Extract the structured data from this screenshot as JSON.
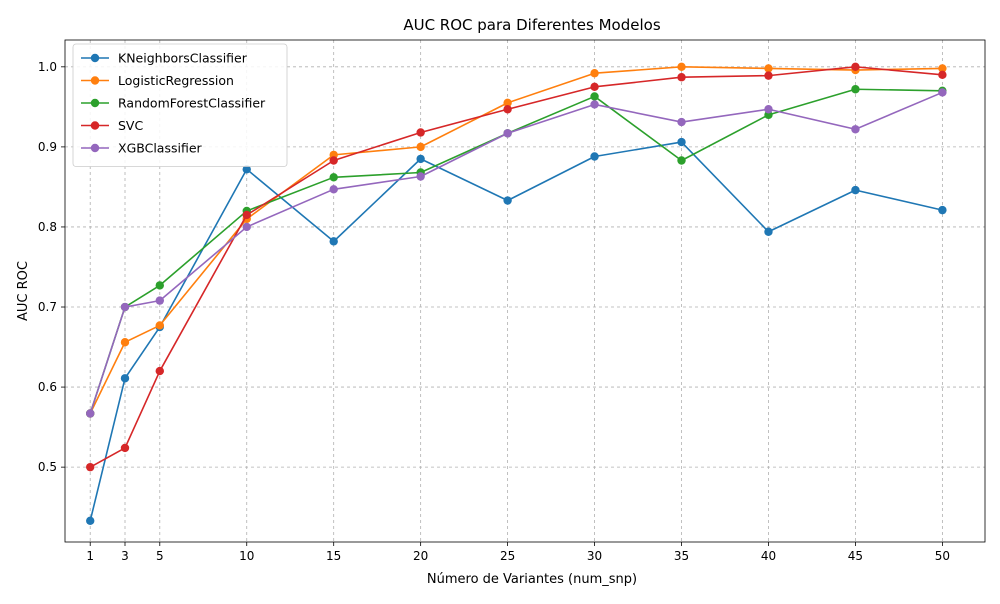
{
  "chart_data": {
    "type": "line",
    "title": "AUC ROC para Diferentes Modelos",
    "xlabel": "Número de Variantes (num_snp)",
    "ylabel": "AUC ROC",
    "x": [
      1,
      3,
      5,
      10,
      15,
      20,
      25,
      30,
      35,
      40,
      45,
      50
    ],
    "xticks": [
      1,
      3,
      5,
      10,
      15,
      20,
      25,
      30,
      35,
      40,
      45,
      50
    ],
    "xtick_labels": [
      "1",
      "3",
      "5",
      "10",
      "15",
      "20",
      "25",
      "30",
      "35",
      "40",
      "45",
      "50"
    ],
    "yticks": [
      0.5,
      0.6,
      0.7,
      0.8,
      0.9,
      1.0
    ],
    "ytick_labels": [
      "0.5",
      "0.6",
      "0.7",
      "0.8",
      "0.9",
      "1.0"
    ],
    "xlim": [
      -0.45,
      52.45
    ],
    "ylim": [
      0.4065,
      1.0335
    ],
    "grid": true,
    "legend_position": "upper-left",
    "series": [
      {
        "name": "KNeighborsClassifier",
        "color": "#1f77b4",
        "values": [
          0.433,
          0.611,
          0.675,
          0.872,
          0.782,
          0.885,
          0.833,
          0.888,
          0.906,
          0.794,
          0.846,
          0.821
        ]
      },
      {
        "name": "LogisticRegression",
        "color": "#ff7f0e",
        "values": [
          0.567,
          0.656,
          0.677,
          0.81,
          0.89,
          0.9,
          0.955,
          0.992,
          1.0,
          0.998,
          0.996,
          0.998
        ]
      },
      {
        "name": "RandomForestClassifier",
        "color": "#2ca02c",
        "values": [
          0.567,
          0.7,
          0.727,
          0.82,
          0.862,
          0.868,
          0.917,
          0.963,
          0.883,
          0.94,
          0.972,
          0.97
        ]
      },
      {
        "name": "SVC",
        "color": "#d62728",
        "values": [
          0.5,
          0.524,
          0.62,
          0.815,
          0.883,
          0.918,
          0.947,
          0.975,
          0.987,
          0.989,
          1.0,
          0.99
        ]
      },
      {
        "name": "XGBClassifier",
        "color": "#9467bd",
        "values": [
          0.567,
          0.7,
          0.708,
          0.8,
          0.847,
          0.863,
          0.917,
          0.953,
          0.931,
          0.947,
          0.922,
          0.968
        ]
      }
    ]
  }
}
